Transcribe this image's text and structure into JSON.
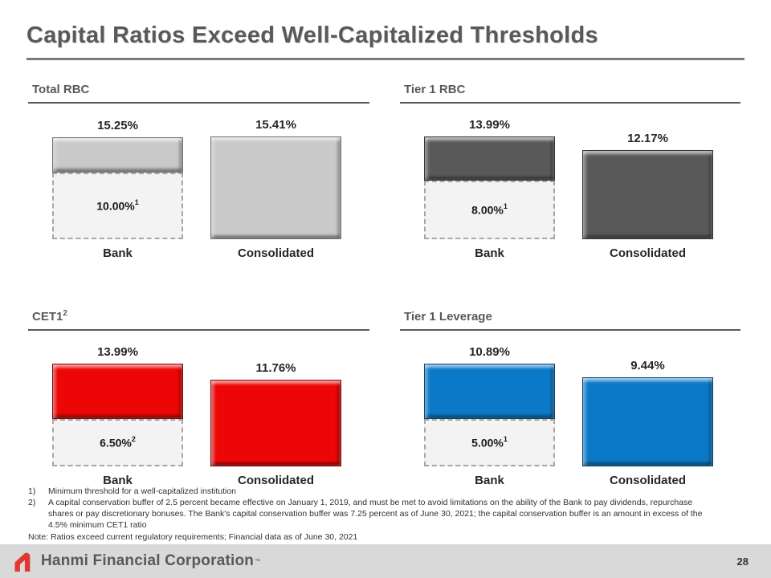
{
  "slide": {
    "title": "Capital Ratios Exceed Well-Capitalized Thresholds"
  },
  "chart_data": [
    {
      "type": "bar",
      "title": "Total RBC",
      "title_marker": "",
      "categories": [
        "Bank",
        "Consolidated"
      ],
      "values": [
        15.25,
        15.41
      ],
      "value_labels": [
        "15.25%",
        "15.41%"
      ],
      "threshold": {
        "value": 10.0,
        "label": "10.00%",
        "marker": "1",
        "applies_to": "Bank"
      },
      "bar_color": "#c9c9c9",
      "ylim": [
        0,
        15.41
      ],
      "legend": "none",
      "grid": false
    },
    {
      "type": "bar",
      "title": "Tier 1 RBC",
      "title_marker": "",
      "categories": [
        "Bank",
        "Consolidated"
      ],
      "values": [
        13.99,
        12.17
      ],
      "value_labels": [
        "13.99%",
        "12.17%"
      ],
      "threshold": {
        "value": 8.0,
        "label": "8.00%",
        "marker": "1",
        "applies_to": "Bank"
      },
      "bar_color": "#595959",
      "ylim": [
        0,
        13.99
      ],
      "legend": "none",
      "grid": false
    },
    {
      "type": "bar",
      "title": "CET1",
      "title_marker": "2",
      "categories": [
        "Bank",
        "Consolidated"
      ],
      "values": [
        13.99,
        11.76
      ],
      "value_labels": [
        "13.99%",
        "11.76%"
      ],
      "threshold": {
        "value": 6.5,
        "label": "6.50%",
        "marker": "2",
        "applies_to": "Bank"
      },
      "bar_color": "#ec0606",
      "ylim": [
        0,
        13.99
      ],
      "legend": "none",
      "grid": false
    },
    {
      "type": "bar",
      "title": "Tier 1 Leverage",
      "title_marker": "",
      "categories": [
        "Bank",
        "Consolidated"
      ],
      "values": [
        10.89,
        9.44
      ],
      "value_labels": [
        "10.89%",
        "9.44%"
      ],
      "threshold": {
        "value": 5.0,
        "label": "5.00%",
        "marker": "1",
        "applies_to": "Bank"
      },
      "bar_color": "#0b79c8",
      "ylim": [
        0,
        10.89
      ],
      "legend": "none",
      "grid": false
    }
  ],
  "footnotes": {
    "items": [
      {
        "marker": "1)",
        "text": "Minimum threshold for a well-capitalized institution"
      },
      {
        "marker": "2)",
        "text": "A capital conservation buffer of 2.5 percent became effective on January 1, 2019, and must be met to avoid limitations on the ability of the Bank to pay dividends, repurchase shares or pay discretionary bonuses. The Bank's capital conservation buffer was 7.25 percent as of June 30, 2021; the capital conservation buffer is an amount in excess of the 4.5% minimum CET1 ratio"
      }
    ],
    "note": "Note: Ratios exceed current regulatory requirements; Financial data as of June 30, 2021"
  },
  "footer": {
    "brand": "Hanmi Financial Corporation",
    "trademark": "TM",
    "logo_color": "#e0372e",
    "band_color": "#d9d9d9",
    "page_number": "28"
  },
  "colors": {
    "title_gray": "#595959",
    "label_dark": "#262626",
    "threshold_fill": "#f3f3f3",
    "threshold_border": "#a6a6a6"
  }
}
